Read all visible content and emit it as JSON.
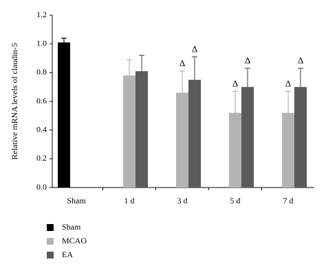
{
  "chart_data": {
    "type": "bar",
    "y_label": "Relative mRNA levels of claudin-5",
    "categories": [
      "Sham",
      "1 d",
      "3 d",
      "5 d",
      "7 d"
    ],
    "series": [
      {
        "name": "Sham",
        "color": "#000000",
        "values": [
          1.01,
          null,
          null,
          null,
          null
        ],
        "errors": [
          0.03,
          null,
          null,
          null,
          null
        ]
      },
      {
        "name": "MCAO",
        "color": "#b3b3b3",
        "values": [
          null,
          0.78,
          0.66,
          0.52,
          0.52
        ],
        "errors": [
          null,
          0.11,
          0.15,
          0.15,
          0.15
        ]
      },
      {
        "name": "EA",
        "color": "#5a5a5a",
        "values": [
          null,
          0.81,
          0.75,
          0.7,
          0.7
        ],
        "errors": [
          null,
          0.11,
          0.16,
          0.13,
          0.13
        ]
      }
    ],
    "annotations": [
      {
        "text": "Δ",
        "category": "3 d",
        "series": "MCAO"
      },
      {
        "text": "Δ",
        "category": "3 d",
        "series": "EA"
      },
      {
        "text": "Δ",
        "category": "5 d",
        "series": "MCAO"
      },
      {
        "text": "Δ",
        "category": "5 d",
        "series": "EA"
      },
      {
        "text": "Δ",
        "category": "7 d",
        "series": "MCAO"
      },
      {
        "text": "Δ",
        "category": "7 d",
        "series": "EA"
      }
    ],
    "ylim": [
      0,
      1.2
    ],
    "yticks": [
      {
        "value": 0,
        "label": "0.0"
      },
      0.2,
      0.4,
      0.6,
      0.8,
      {
        "value": 1,
        "label": "1.0"
      },
      1.2
    ],
    "grid": false,
    "legend": "bottom-left"
  }
}
